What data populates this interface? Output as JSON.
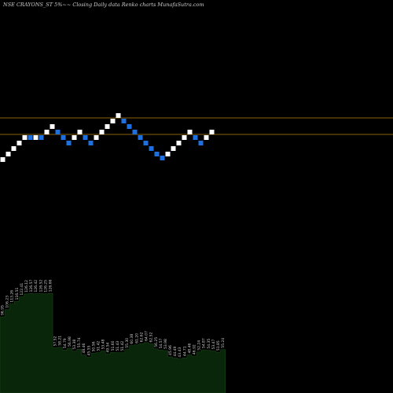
{
  "header": {
    "title": "NSE CRAYONS_ST 5%~~ Closing Daily data  Renko  charts MunafaSutra.com"
  },
  "chart_data": {
    "type": "renko",
    "title": "NSE CRAYONS_ST 5%~~ Closing Daily data  Renko  charts MunafaSutra.com",
    "xlabel": "",
    "ylabel": "",
    "brick_size_pct": 5,
    "colors": {
      "background": "#000000",
      "up_brick": "#ffffff",
      "down_brick": "#1e6fe0",
      "reference_line": "#b8860b",
      "volume_fill": "#0a260a",
      "volume_line": "#1c4a1c"
    },
    "reference_levels": [
      150,
      171
    ],
    "bricks": [
      {
        "level": 203,
        "dir": "up"
      },
      {
        "level": 196,
        "dir": "up"
      },
      {
        "level": 189,
        "dir": "up"
      },
      {
        "level": 182,
        "dir": "up"
      },
      {
        "level": 175,
        "dir": "up"
      },
      {
        "level": 175,
        "dir": "down"
      },
      {
        "level": 175,
        "dir": "up"
      },
      {
        "level": 175,
        "dir": "down"
      },
      {
        "level": 168,
        "dir": "up"
      },
      {
        "level": 161,
        "dir": "up"
      },
      {
        "level": 168,
        "dir": "down"
      },
      {
        "level": 175,
        "dir": "down"
      },
      {
        "level": 182,
        "dir": "down"
      },
      {
        "level": 175,
        "dir": "up"
      },
      {
        "level": 168,
        "dir": "up"
      },
      {
        "level": 175,
        "dir": "down"
      },
      {
        "level": 182,
        "dir": "down"
      },
      {
        "level": 175,
        "dir": "up"
      },
      {
        "level": 168,
        "dir": "up"
      },
      {
        "level": 161,
        "dir": "up"
      },
      {
        "level": 154,
        "dir": "up"
      },
      {
        "level": 147,
        "dir": "up"
      },
      {
        "level": 154,
        "dir": "down"
      },
      {
        "level": 161,
        "dir": "down"
      },
      {
        "level": 168,
        "dir": "down"
      },
      {
        "level": 175,
        "dir": "down"
      },
      {
        "level": 182,
        "dir": "down"
      },
      {
        "level": 189,
        "dir": "down"
      },
      {
        "level": 196,
        "dir": "down"
      },
      {
        "level": 201,
        "dir": "down"
      },
      {
        "level": 196,
        "dir": "up"
      },
      {
        "level": 189,
        "dir": "up"
      },
      {
        "level": 182,
        "dir": "up"
      },
      {
        "level": 175,
        "dir": "up"
      },
      {
        "level": 168,
        "dir": "up"
      },
      {
        "level": 175,
        "dir": "down"
      },
      {
        "level": 182,
        "dir": "down"
      },
      {
        "level": 175,
        "dir": "up"
      },
      {
        "level": 168,
        "dir": "up"
      }
    ],
    "volume_labels": [
      "96.95",
      "106.23",
      "113.26",
      "116.51",
      "122.41",
      "126.12",
      "126.57",
      "126.42",
      "126.52",
      "126.25",
      "126.66",
      "57.52",
      "58.21",
      "54.79",
      "56.98",
      "53.38",
      "55.74",
      "48.46",
      "45.55",
      "50.56",
      "51.42",
      "53.48",
      "49.54",
      "51.60",
      "51.43",
      "51.42",
      "55.30",
      "60.38",
      "61.20",
      "62.62",
      "64.07",
      "62.52",
      "56.25",
      "54.57",
      "53.98",
      "45.96",
      "44.49",
      "43.43",
      "44.71",
      "48.46",
      "46.92",
      "52.24",
      "54.87",
      "54.35",
      "53.47",
      "51.85",
      "55.24"
    ]
  }
}
